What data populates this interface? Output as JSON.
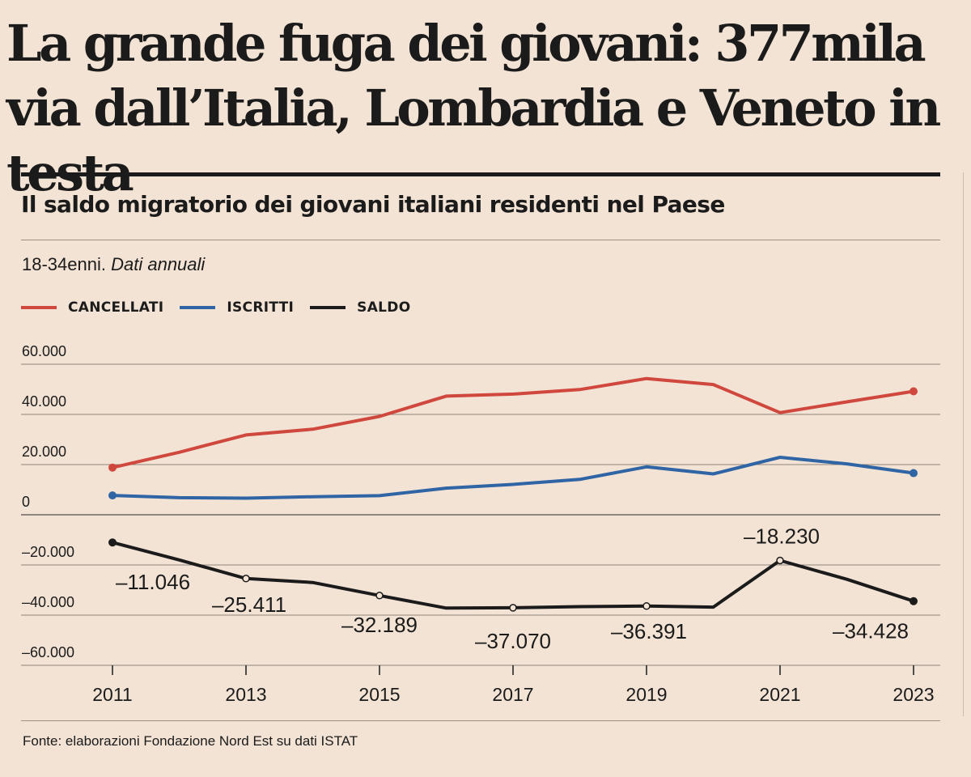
{
  "headline": "La grande fuga dei giovani: 377mila via dall’Italia, Lombardia e Veneto in testa",
  "chart_data": {
    "type": "line",
    "title": "Il saldo migratorio dei giovani italiani residenti nel Paese",
    "note_plain": "18-34enni.",
    "note_italic": "Dati annuali",
    "x": [
      2011,
      2012,
      2013,
      2014,
      2015,
      2016,
      2017,
      2018,
      2019,
      2020,
      2021,
      2022,
      2023
    ],
    "x_ticks": [
      "2011",
      "2013",
      "2015",
      "2017",
      "2019",
      "2021",
      "2023"
    ],
    "y_ticks": [
      60000,
      40000,
      20000,
      0,
      -20000,
      -40000,
      -60000
    ],
    "y_tick_labels": [
      "60.000",
      "40.000",
      "20.000",
      "0",
      "–20.000",
      "–40.000",
      "–60.000"
    ],
    "ylim": [
      -60000,
      60000
    ],
    "series": [
      {
        "name": "CANCELLATI",
        "color": "#d0473d",
        "values": [
          18800,
          24900,
          31800,
          34100,
          39200,
          47300,
          48100,
          49900,
          54300,
          51900,
          40700,
          45000,
          49200
        ]
      },
      {
        "name": "ISCRITTI",
        "color": "#2f64a5",
        "values": [
          7700,
          6800,
          6600,
          7200,
          7600,
          10600,
          12100,
          14100,
          19100,
          16300,
          22900,
          20300,
          16600
        ]
      },
      {
        "name": "SALDO",
        "color": "#1b1b1b",
        "values": [
          -11046,
          -18000,
          -25411,
          -27000,
          -32189,
          -37200,
          -37070,
          -36600,
          -36391,
          -36800,
          -18230,
          -25700,
          -34428
        ]
      }
    ],
    "saldo_annotations": [
      {
        "year": 2011,
        "label": "–11.046"
      },
      {
        "year": 2013,
        "label": "–25.411"
      },
      {
        "year": 2015,
        "label": "–32.189"
      },
      {
        "year": 2017,
        "label": "–37.070"
      },
      {
        "year": 2019,
        "label": "–36.391"
      },
      {
        "year": 2021,
        "label": "–18.230"
      },
      {
        "year": 2023,
        "label": "–34.428"
      }
    ]
  },
  "source": "Fonte: elaborazioni Fondazione Nord Est su dati ISTAT"
}
